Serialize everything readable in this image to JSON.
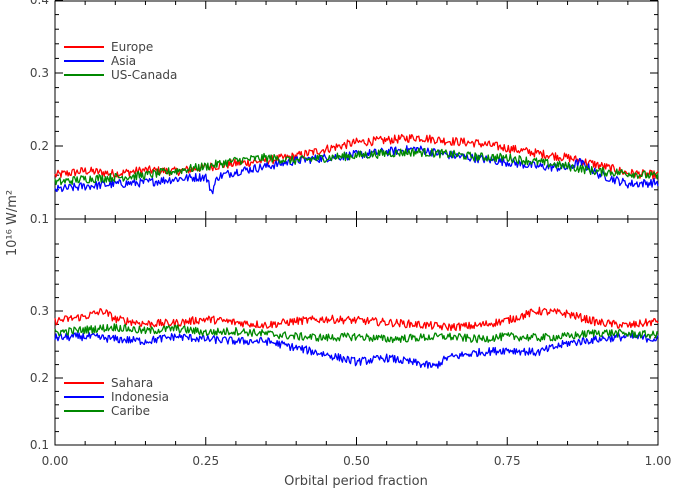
{
  "chart_data": [
    {
      "type": "line",
      "panel": "top",
      "xlim": [
        0.0,
        1.0
      ],
      "ylim": [
        0.1,
        0.4
      ],
      "yticks": [
        "0.1",
        "0.2",
        "0.3",
        "0.4"
      ],
      "ytick_values": [
        0.1,
        0.2,
        0.3,
        0.4
      ],
      "legend_position": "upper-left",
      "series": [
        {
          "name": "Europe",
          "color": "#ff0000",
          "x": [
            0.0,
            0.05,
            0.1,
            0.15,
            0.2,
            0.25,
            0.3,
            0.35,
            0.4,
            0.45,
            0.5,
            0.55,
            0.6,
            0.65,
            0.7,
            0.75,
            0.8,
            0.85,
            0.9,
            0.95,
            1.0
          ],
          "y": [
            0.16,
            0.166,
            0.162,
            0.167,
            0.165,
            0.171,
            0.176,
            0.18,
            0.186,
            0.196,
            0.205,
            0.208,
            0.212,
            0.207,
            0.204,
            0.197,
            0.19,
            0.184,
            0.174,
            0.163,
            0.16
          ]
        },
        {
          "name": "Asia",
          "color": "#0000ff",
          "x": [
            0.0,
            0.05,
            0.1,
            0.15,
            0.2,
            0.25,
            0.26,
            0.27,
            0.3,
            0.35,
            0.4,
            0.45,
            0.5,
            0.55,
            0.6,
            0.65,
            0.7,
            0.75,
            0.8,
            0.85,
            0.87,
            0.9,
            0.95,
            1.0
          ],
          "y": [
            0.14,
            0.145,
            0.148,
            0.15,
            0.155,
            0.158,
            0.137,
            0.158,
            0.165,
            0.172,
            0.18,
            0.184,
            0.188,
            0.192,
            0.196,
            0.188,
            0.183,
            0.178,
            0.172,
            0.17,
            0.178,
            0.162,
            0.148,
            0.15
          ]
        },
        {
          "name": "US-Canada",
          "color": "#008800",
          "x": [
            0.0,
            0.05,
            0.1,
            0.15,
            0.2,
            0.25,
            0.3,
            0.35,
            0.4,
            0.45,
            0.5,
            0.55,
            0.6,
            0.65,
            0.7,
            0.75,
            0.8,
            0.85,
            0.9,
            0.95,
            1.0
          ],
          "y": [
            0.15,
            0.155,
            0.157,
            0.16,
            0.166,
            0.172,
            0.18,
            0.184,
            0.18,
            0.184,
            0.187,
            0.19,
            0.192,
            0.189,
            0.185,
            0.184,
            0.178,
            0.172,
            0.165,
            0.163,
            0.158
          ]
        }
      ]
    },
    {
      "type": "line",
      "panel": "bottom",
      "xlabel": "Orbital period fraction",
      "ylabel_shared": "10¹⁶ W/m²",
      "xlim": [
        0.0,
        1.0
      ],
      "xticks": [
        "0.00",
        "0.25",
        "0.50",
        "0.75",
        "1.00"
      ],
      "xtick_values": [
        0.0,
        0.25,
        0.5,
        0.75,
        1.0
      ],
      "ylim": [
        0.1,
        0.4
      ],
      "yticks": [
        "0.1",
        "0.2",
        "0.3"
      ],
      "ytick_values": [
        0.1,
        0.2,
        0.3
      ],
      "legend_position": "lower-left",
      "series": [
        {
          "name": "Sahara",
          "color": "#ff0000",
          "x": [
            0.0,
            0.05,
            0.08,
            0.1,
            0.15,
            0.2,
            0.25,
            0.3,
            0.35,
            0.4,
            0.45,
            0.5,
            0.55,
            0.6,
            0.65,
            0.7,
            0.75,
            0.8,
            0.85,
            0.9,
            0.95,
            1.0
          ],
          "y": [
            0.285,
            0.292,
            0.3,
            0.288,
            0.281,
            0.282,
            0.288,
            0.283,
            0.279,
            0.285,
            0.288,
            0.286,
            0.283,
            0.28,
            0.276,
            0.278,
            0.286,
            0.3,
            0.296,
            0.283,
            0.278,
            0.285
          ]
        },
        {
          "name": "Indonesia",
          "color": "#0000ff",
          "x": [
            0.0,
            0.05,
            0.1,
            0.15,
            0.2,
            0.25,
            0.3,
            0.35,
            0.4,
            0.45,
            0.5,
            0.55,
            0.6,
            0.63,
            0.65,
            0.7,
            0.75,
            0.8,
            0.85,
            0.9,
            0.95,
            1.0
          ],
          "y": [
            0.26,
            0.262,
            0.258,
            0.255,
            0.262,
            0.258,
            0.255,
            0.255,
            0.245,
            0.235,
            0.224,
            0.23,
            0.222,
            0.217,
            0.23,
            0.238,
            0.242,
            0.238,
            0.252,
            0.258,
            0.262,
            0.258
          ]
        },
        {
          "name": "Caribe",
          "color": "#008800",
          "x": [
            0.0,
            0.05,
            0.1,
            0.15,
            0.2,
            0.25,
            0.3,
            0.35,
            0.4,
            0.45,
            0.5,
            0.55,
            0.6,
            0.65,
            0.7,
            0.75,
            0.8,
            0.85,
            0.9,
            0.95,
            1.0
          ],
          "y": [
            0.268,
            0.272,
            0.276,
            0.27,
            0.274,
            0.268,
            0.27,
            0.266,
            0.262,
            0.26,
            0.262,
            0.258,
            0.26,
            0.262,
            0.258,
            0.262,
            0.26,
            0.262,
            0.268,
            0.266,
            0.264
          ]
        }
      ]
    }
  ]
}
